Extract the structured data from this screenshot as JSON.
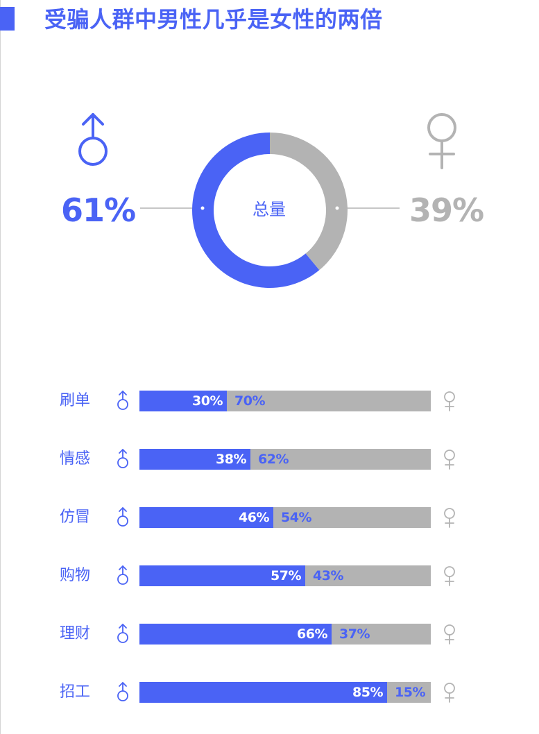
{
  "header": {
    "title": "受骗人群中男性几乎是女性的两倍",
    "accent_color": "#4a63f5"
  },
  "summary": {
    "male_icon": "male-symbol-icon",
    "female_icon": "female-symbol-icon",
    "male_value": "61%",
    "female_value": "39%",
    "center_label": "总量",
    "male_color": "#4a63f5",
    "female_color": "#b3b3b3"
  },
  "chart_data": [
    {
      "type": "pie",
      "categories": [
        "男",
        "女"
      ],
      "values": [
        61,
        39
      ],
      "labels": [
        "61%",
        "39%"
      ],
      "center_label": "总量",
      "colors": [
        "#4a63f5",
        "#b3b3b3"
      ]
    },
    {
      "type": "bar",
      "orientation": "horizontal",
      "stacked": true,
      "normalized": true,
      "categories": [
        "刷单",
        "情感",
        "仿冒",
        "购物",
        "理财",
        "招工"
      ],
      "series": [
        {
          "values": [
            30,
            38,
            46,
            57,
            66,
            85
          ],
          "labels": [
            "30%",
            "38%",
            "46%",
            "57%",
            "66%",
            "85%"
          ],
          "color": "#4a63f5"
        },
        {
          "values": [
            70,
            62,
            54,
            43,
            37,
            15
          ],
          "labels": [
            "70%",
            "62%",
            "54%",
            "43%",
            "37%",
            "15%"
          ],
          "color": "#b3b3b3"
        }
      ],
      "xlim": [
        0,
        100
      ]
    }
  ]
}
